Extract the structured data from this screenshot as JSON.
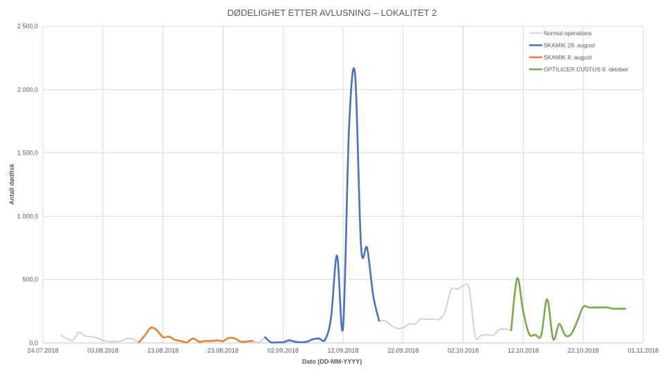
{
  "chart_data": {
    "type": "line",
    "title": "DØDELIGHET ETTER AVLUSNING – LOKALITET 2",
    "xlabel": "Dato (DD-MM-YYYY)",
    "ylabel": "Antall dødfisk",
    "x_range": [
      "2018-07-24",
      "2018-11-01"
    ],
    "ylim": [
      0,
      2500
    ],
    "y_ticks": [
      0,
      500,
      1000,
      1500,
      2000,
      2500
    ],
    "y_tick_labels": [
      "0,0",
      "500,0",
      "1 000,0",
      "1 500,0",
      "2 000,0",
      "2 500,0"
    ],
    "x_ticks": [
      "2018-07-24",
      "2018-08-03",
      "2018-08-13",
      "2018-08-23",
      "2018-09-02",
      "2018-09-12",
      "2018-09-22",
      "2018-10-02",
      "2018-10-12",
      "2018-10-22",
      "2018-11-01"
    ],
    "x_tick_labels": [
      "24.07.2018",
      "03.08.2018",
      "13.08.2018",
      "23.08.2018",
      "02.09.2018",
      "12.09.2018",
      "22.09.2018",
      "02.10.2018",
      "12.10.2018",
      "22.10.2018",
      "01.11.2018"
    ],
    "grid": true,
    "legend_position": "top-right",
    "series": [
      {
        "name": "Normal operations",
        "color": "#c8c8c8",
        "segments": [
          [
            [
              "2018-07-27",
              60
            ],
            [
              "2018-07-28",
              35
            ],
            [
              "2018-07-29",
              20
            ],
            [
              "2018-07-30",
              85
            ],
            [
              "2018-07-31",
              55
            ],
            [
              "2018-08-01",
              50
            ],
            [
              "2018-08-02",
              40
            ],
            [
              "2018-08-03",
              20
            ],
            [
              "2018-08-04",
              12
            ],
            [
              "2018-08-05",
              12
            ],
            [
              "2018-08-06",
              15
            ],
            [
              "2018-08-07",
              35
            ],
            [
              "2018-08-08",
              30
            ],
            [
              "2018-08-09",
              5
            ]
          ],
          [
            [
              "2018-08-27",
              12
            ],
            [
              "2018-08-28",
              15
            ],
            [
              "2018-08-29",
              5
            ],
            [
              "2018-08-30",
              45
            ]
          ],
          [
            [
              "2018-09-18",
              175
            ],
            [
              "2018-09-19",
              175
            ],
            [
              "2018-09-20",
              140
            ],
            [
              "2018-09-21",
              115
            ],
            [
              "2018-09-22",
              120
            ],
            [
              "2018-09-23",
              150
            ],
            [
              "2018-09-24",
              150
            ],
            [
              "2018-09-25",
              190
            ],
            [
              "2018-09-26",
              185
            ],
            [
              "2018-09-27",
              190
            ],
            [
              "2018-09-28",
              185
            ],
            [
              "2018-09-29",
              250
            ],
            [
              "2018-09-30",
              420
            ],
            [
              "2018-10-01",
              425
            ],
            [
              "2018-10-02",
              450
            ],
            [
              "2018-10-03",
              430
            ],
            [
              "2018-10-04",
              55
            ],
            [
              "2018-10-05",
              60
            ],
            [
              "2018-10-06",
              65
            ],
            [
              "2018-10-07",
              60
            ],
            [
              "2018-10-08",
              105
            ],
            [
              "2018-10-09",
              110
            ],
            [
              "2018-10-10",
              100
            ]
          ]
        ]
      },
      {
        "name": "SKAMIK 29. august",
        "color": "#4472c4",
        "segments": [
          [
            [
              "2018-08-30",
              45
            ],
            [
              "2018-08-31",
              5
            ],
            [
              "2018-09-01",
              5
            ],
            [
              "2018-09-02",
              5
            ],
            [
              "2018-09-03",
              20
            ],
            [
              "2018-09-04",
              10
            ],
            [
              "2018-09-05",
              5
            ],
            [
              "2018-09-06",
              10
            ],
            [
              "2018-09-07",
              30
            ],
            [
              "2018-09-08",
              35
            ],
            [
              "2018-09-09",
              25
            ],
            [
              "2018-09-10",
              200
            ],
            [
              "2018-09-11",
              690
            ],
            [
              "2018-09-12",
              120
            ],
            [
              "2018-09-13",
              1700
            ],
            [
              "2018-09-14",
              2120
            ],
            [
              "2018-09-15",
              760
            ],
            [
              "2018-09-16",
              750
            ],
            [
              "2018-09-17",
              380
            ],
            [
              "2018-09-18",
              175
            ]
          ]
        ]
      },
      {
        "name": "SKAMIK 8. august",
        "color": "#ed7d31",
        "segments": [
          [
            [
              "2018-08-09",
              5
            ],
            [
              "2018-08-10",
              60
            ],
            [
              "2018-08-11",
              120
            ],
            [
              "2018-08-12",
              100
            ],
            [
              "2018-08-13",
              45
            ],
            [
              "2018-08-14",
              50
            ],
            [
              "2018-08-15",
              25
            ],
            [
              "2018-08-16",
              15
            ],
            [
              "2018-08-17",
              5
            ],
            [
              "2018-08-18",
              35
            ],
            [
              "2018-08-19",
              10
            ],
            [
              "2018-08-20",
              15
            ],
            [
              "2018-08-21",
              15
            ],
            [
              "2018-08-22",
              20
            ],
            [
              "2018-08-23",
              15
            ],
            [
              "2018-08-24",
              40
            ],
            [
              "2018-08-25",
              35
            ],
            [
              "2018-08-26",
              10
            ],
            [
              "2018-08-27",
              12
            ],
            [
              "2018-08-28",
              15
            ]
          ]
        ]
      },
      {
        "name": "OPTILICER CUSTUS 9. oktober",
        "color": "#70ad47",
        "segments": [
          [
            [
              "2018-10-10",
              100
            ],
            [
              "2018-10-11",
              510
            ],
            [
              "2018-10-12",
              250
            ],
            [
              "2018-10-13",
              70
            ],
            [
              "2018-10-14",
              65
            ],
            [
              "2018-10-15",
              60
            ],
            [
              "2018-10-16",
              345
            ],
            [
              "2018-10-17",
              30
            ],
            [
              "2018-10-18",
              150
            ],
            [
              "2018-10-19",
              60
            ],
            [
              "2018-10-20",
              70
            ],
            [
              "2018-10-21",
              170
            ],
            [
              "2018-10-22",
              285
            ],
            [
              "2018-10-23",
              280
            ],
            [
              "2018-10-24",
              280
            ],
            [
              "2018-10-25",
              280
            ],
            [
              "2018-10-26",
              280
            ],
            [
              "2018-10-27",
              270
            ],
            [
              "2018-10-28",
              270
            ],
            [
              "2018-10-29",
              270
            ]
          ]
        ]
      }
    ]
  }
}
